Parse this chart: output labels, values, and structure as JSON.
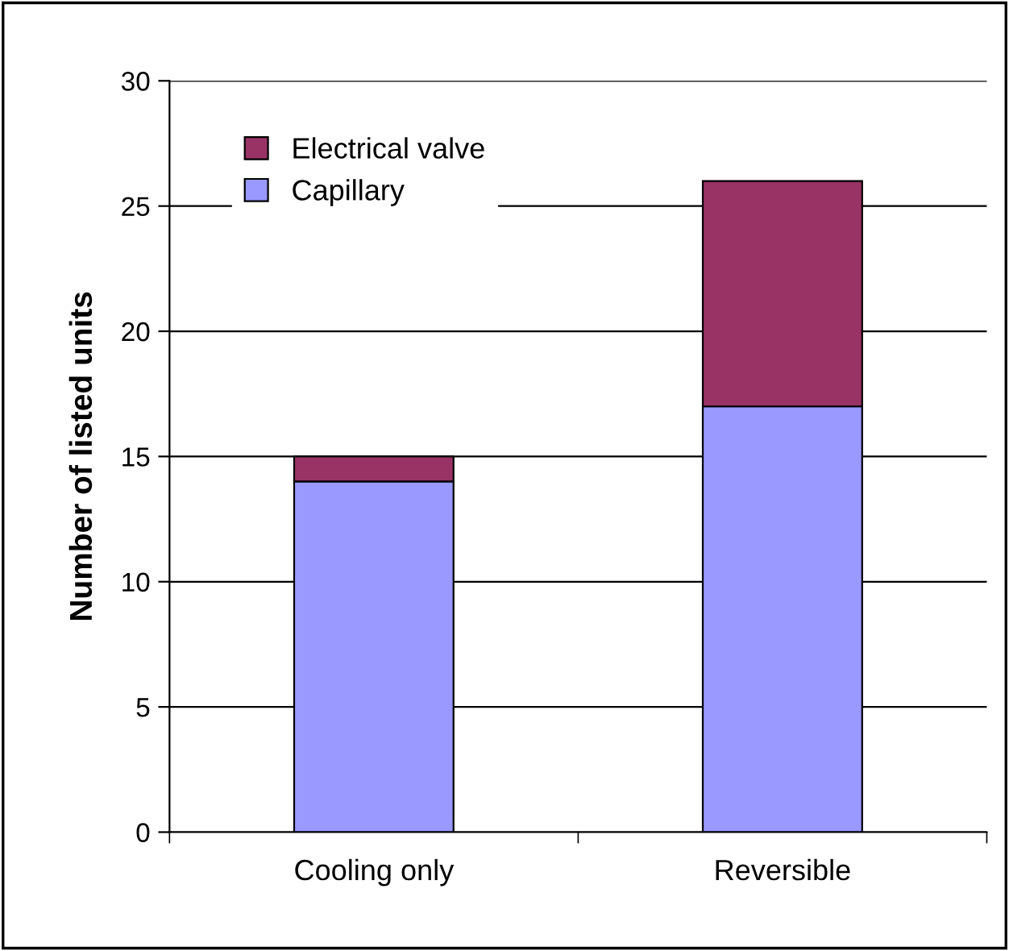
{
  "chart_data": {
    "type": "bar",
    "stacked": true,
    "ylabel": "Number of listed units",
    "categories": [
      "Cooling only",
      "Reversible"
    ],
    "series": [
      {
        "name": "Capillary",
        "color": "#9999ff",
        "values": [
          14,
          17
        ]
      },
      {
        "name": "Electrical valve",
        "color": "#993366",
        "values": [
          1,
          9
        ]
      }
    ],
    "ylim": [
      0,
      30
    ],
    "yticks": [
      0,
      5,
      10,
      15,
      20,
      25,
      30
    ],
    "grid": "y",
    "legend": "top left"
  }
}
